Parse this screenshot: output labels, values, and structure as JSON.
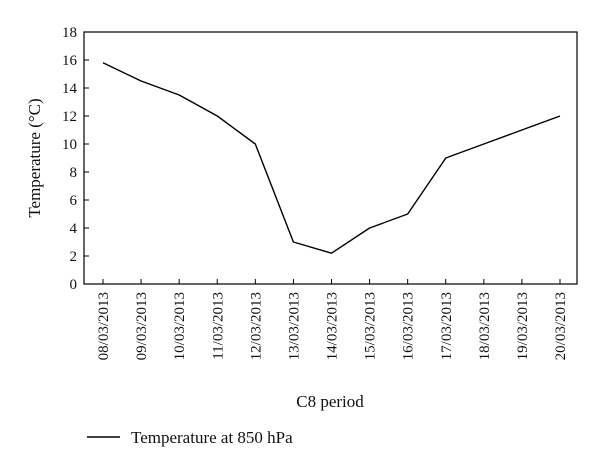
{
  "chart_data": {
    "type": "line",
    "categories": [
      "08/03/2013",
      "09/03/2013",
      "10/03/2013",
      "11/03/2013",
      "12/03/2013",
      "13/03/2013",
      "14/03/2013",
      "15/03/2013",
      "16/03/2013",
      "17/03/2013",
      "18/03/2013",
      "19/03/2013",
      "20/03/2013"
    ],
    "series": [
      {
        "name": "Temperature at 850 hPa",
        "values": [
          15.8,
          14.5,
          13.5,
          12,
          10,
          3,
          2.2,
          4,
          5,
          9,
          10,
          11,
          12
        ],
        "color": "#000000"
      }
    ],
    "xlabel": "C8 period",
    "ylabel": "Temperature (°C)",
    "ylim": [
      0,
      18
    ],
    "yticks": [
      0,
      2,
      4,
      6,
      8,
      10,
      12,
      14,
      16,
      18
    ],
    "grid": false,
    "legend": "bottom-left"
  }
}
